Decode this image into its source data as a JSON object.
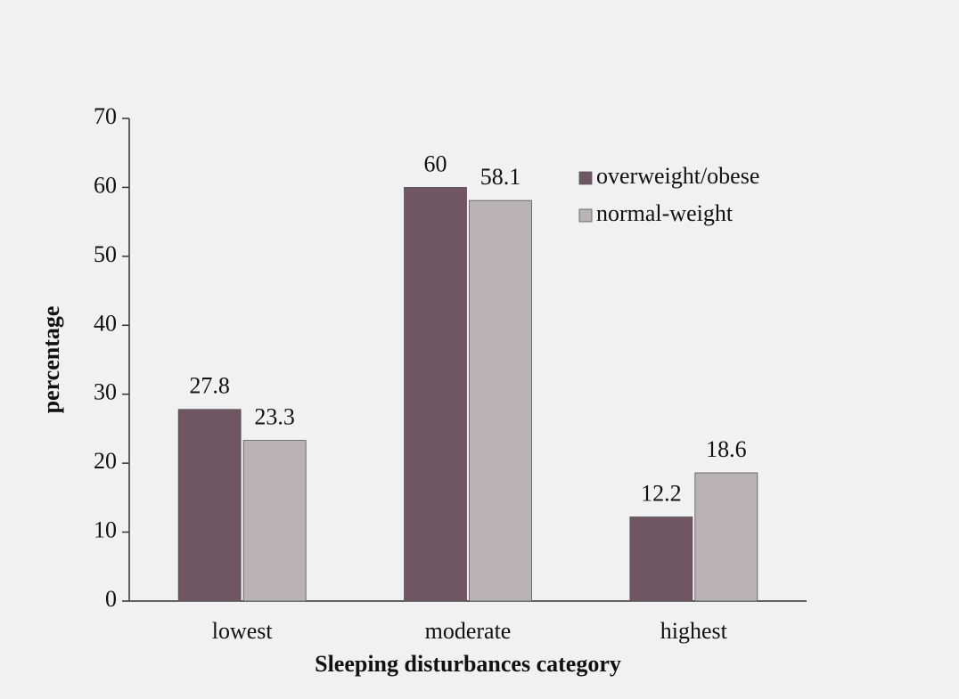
{
  "chart_data": {
    "type": "bar",
    "x_label": "Sleeping disturbances category",
    "y_label": "percentage",
    "categories": [
      "lowest",
      "moderate",
      "highest"
    ],
    "series": [
      {
        "name": "overweight/obese",
        "color": "#6f5660",
        "values": [
          27.8,
          60,
          12.2
        ]
      },
      {
        "name": "normal-weight",
        "color": "#b9b3b6",
        "values": [
          23.3,
          58.1,
          18.6
        ]
      }
    ],
    "ylim": [
      0,
      70
    ],
    "yticks": [
      0,
      10,
      20,
      30,
      40,
      50,
      60,
      70
    ],
    "grid": false,
    "legend": "upper right"
  }
}
